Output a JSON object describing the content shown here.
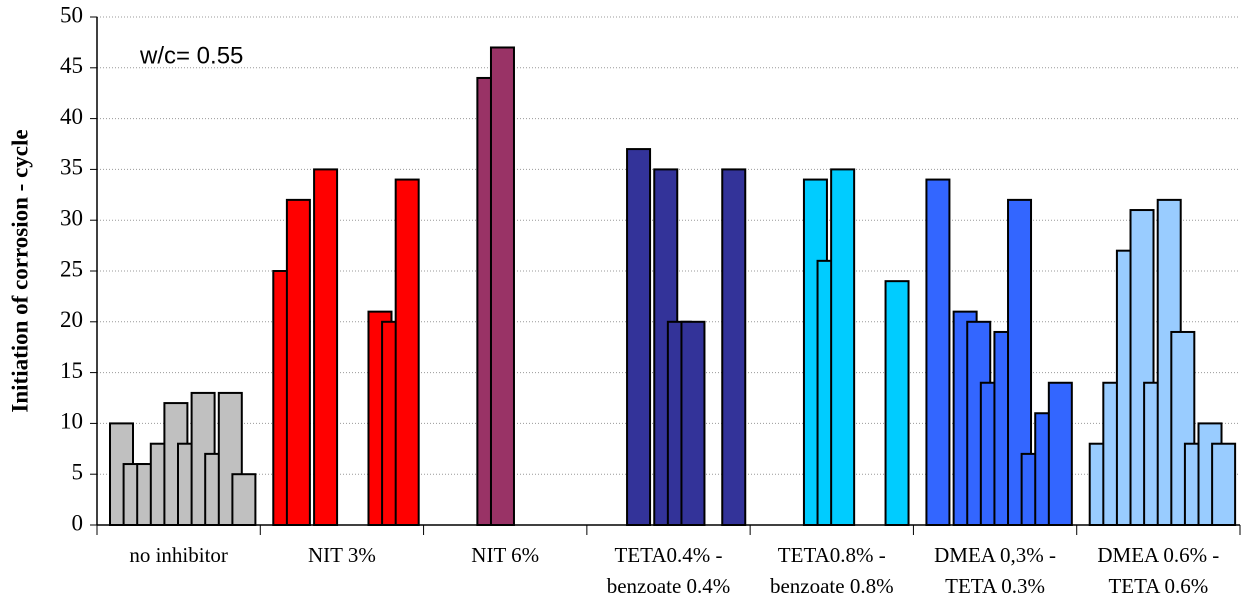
{
  "chart_data": {
    "type": "bar",
    "y_label": "Initiation of corrosion - cycle",
    "annotation": "w/c= 0.55",
    "categories": [
      "no inhibitor",
      "NIT 3%",
      "NIT 6%",
      "TETA0.4% -\nbenzoate 0.4%",
      "TETA0.8% -\nbenzoate 0.8%",
      "DMEA 0,3% -\nTETA 0.3%",
      "DMEA 0.6% -\nTETA 0.6%"
    ],
    "colors": [
      "#c0c0c0",
      "#ff0000",
      "#993366",
      "#333399",
      "#00ccff",
      "#3366ff",
      "#99ccff"
    ],
    "series": [
      {
        "values": [
          10,
          25,
          null,
          null,
          null,
          34,
          8
        ]
      },
      {
        "values": [
          6,
          32,
          null,
          null,
          null,
          null,
          14
        ]
      },
      {
        "values": [
          6,
          null,
          null,
          37,
          null,
          21,
          27
        ]
      },
      {
        "values": [
          8,
          35,
          44,
          null,
          34,
          20,
          31
        ]
      },
      {
        "values": [
          12,
          null,
          47,
          35,
          26,
          14,
          14
        ]
      },
      {
        "values": [
          8,
          null,
          null,
          20,
          35,
          19,
          32
        ]
      },
      {
        "values": [
          13,
          null,
          null,
          20,
          null,
          32,
          19
        ]
      },
      {
        "values": [
          7,
          21,
          null,
          null,
          null,
          7,
          8
        ]
      },
      {
        "values": [
          13,
          20,
          null,
          null,
          null,
          11,
          10
        ]
      },
      {
        "values": [
          5,
          34,
          null,
          35,
          24,
          14,
          8
        ]
      }
    ],
    "ylim": [
      0,
      50
    ],
    "yticks": [
      0,
      5,
      10,
      15,
      20,
      25,
      30,
      35,
      40,
      45,
      50
    ],
    "grid": true
  }
}
